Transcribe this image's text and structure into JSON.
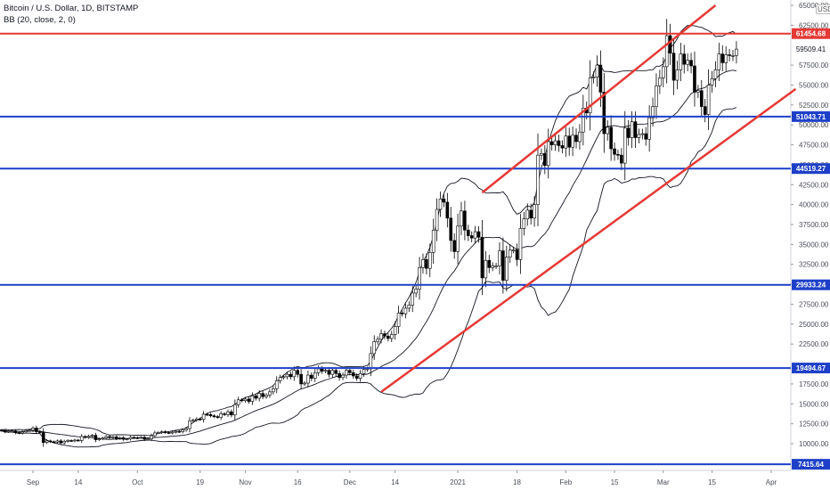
{
  "header": {
    "title": "Bitcoin / U.S. Dollar, 1D, BITSTAMP",
    "indicator": "BB (20, close, 2, 0)",
    "currency": "USD"
  },
  "chart_data": {
    "type": "candlestick",
    "title": "Bitcoin / U.S. Dollar, 1D, BITSTAMP",
    "xlabel": "",
    "ylabel": "",
    "ylim": [
      6500,
      65000
    ],
    "x_range": [
      "2020-08-22",
      "2021-04-08"
    ],
    "x_ticks": [
      {
        "date": "2020-09-01",
        "label": "Sep"
      },
      {
        "date": "2020-09-14",
        "label": "14"
      },
      {
        "date": "2020-10-01",
        "label": "Oct"
      },
      {
        "date": "2020-10-19",
        "label": "19"
      },
      {
        "date": "2020-11-01",
        "label": "Nov"
      },
      {
        "date": "2020-11-16",
        "label": "16"
      },
      {
        "date": "2020-12-01",
        "label": "Dec"
      },
      {
        "date": "2020-12-14",
        "label": "14"
      },
      {
        "date": "2021-01-01",
        "label": "2021"
      },
      {
        "date": "2021-01-18",
        "label": "18"
      },
      {
        "date": "2021-02-01",
        "label": "Feb"
      },
      {
        "date": "2021-02-15",
        "label": "15"
      },
      {
        "date": "2021-03-01",
        "label": "Mar"
      },
      {
        "date": "2021-03-15",
        "label": "15"
      },
      {
        "date": "2021-04-01",
        "label": "Apr"
      }
    ],
    "y_ticks": [
      {
        "value": 65000,
        "label": "65000.00"
      },
      {
        "value": 62500,
        "label": "62500.00"
      },
      {
        "value": 57500,
        "label": "57500.00"
      },
      {
        "value": 55000,
        "label": "55000.00"
      },
      {
        "value": 52500,
        "label": "52500.00"
      },
      {
        "value": 50000,
        "label": "50000.00"
      },
      {
        "value": 47500,
        "label": "47500.00"
      },
      {
        "value": 45000,
        "label": "45000.00"
      },
      {
        "value": 42500,
        "label": "42500.00"
      },
      {
        "value": 40000,
        "label": "40000.00"
      },
      {
        "value": 37500,
        "label": "37500.00"
      },
      {
        "value": 35000,
        "label": "35000.00"
      },
      {
        "value": 32500,
        "label": "32500.00"
      },
      {
        "value": 30000,
        "label": "30000.00"
      },
      {
        "value": 27500,
        "label": "27500.00"
      },
      {
        "value": 25000,
        "label": "25000.00"
      },
      {
        "value": 22500,
        "label": "22500.00"
      },
      {
        "value": 17500,
        "label": "17500.00"
      },
      {
        "value": 15000,
        "label": "15000.00"
      },
      {
        "value": 12500,
        "label": "12500.00"
      },
      {
        "value": 10000,
        "label": "10000.00"
      }
    ],
    "current_price": {
      "value": 59509.41,
      "label": "59509.41"
    },
    "horizontal_levels": [
      {
        "value": 61454.68,
        "label": "61454.68",
        "color": "#e53935"
      },
      {
        "value": 51043.71,
        "label": "51043.71",
        "color": "#1e40c8"
      },
      {
        "value": 44519.27,
        "label": "44519.27",
        "color": "#1e40c8"
      },
      {
        "value": 29933.24,
        "label": "29933.24",
        "color": "#1e40c8"
      },
      {
        "value": 19494.67,
        "label": "19494.67",
        "color": "#1e40c8"
      },
      {
        "value": 7415.64,
        "label": "7415.64",
        "color": "#1e40c8"
      }
    ],
    "channel_lines": [
      {
        "from": {
          "date": "2021-01-08",
          "value": 41500
        },
        "to": {
          "date": "2021-03-16",
          "value": 65000
        },
        "color": "#e53935"
      },
      {
        "from": {
          "date": "2020-12-10",
          "value": 16500
        },
        "to": {
          "date": "2021-04-08",
          "value": 54500
        },
        "color": "#e53935"
      }
    ],
    "series": [
      {
        "name": "Bitcoin / U.S. Dollar",
        "type": "candlestick",
        "daily_closes": [
          11700,
          11650,
          11500,
          11550,
          11600,
          11400,
          11350,
          11500,
          11650,
          11700,
          11950,
          11500,
          11400,
          10150,
          10350,
          10250,
          10200,
          10350,
          10100,
          10300,
          10400,
          10350,
          10450,
          10400,
          10900,
          10800,
          10950,
          11050,
          10500,
          10600,
          10700,
          10900,
          10750,
          10850,
          10650,
          10750,
          10550,
          10600,
          10800,
          10750,
          10700,
          10800,
          10550,
          10600,
          11000,
          11350,
          11400,
          11500,
          11400,
          11350,
          11450,
          11550,
          11500,
          11700,
          11900,
          12850,
          12950,
          13100,
          13050,
          13700,
          13650,
          13500,
          13400,
          13300,
          13750,
          13650,
          14000,
          13600,
          14900,
          15500,
          15400,
          15600,
          15300,
          16000,
          15700,
          16300,
          15900,
          16100,
          16500,
          16900,
          17900,
          18300,
          18400,
          18700,
          18400,
          19200,
          18700,
          17500,
          17600,
          18600,
          18200,
          18900,
          19400,
          19100,
          19200,
          18700,
          19200,
          18800,
          18300,
          18600,
          19200,
          18900,
          18500,
          18200,
          18800,
          19300,
          19400,
          21300,
          22800,
          23100,
          23800,
          23500,
          23200,
          23700,
          24700,
          26400,
          26300,
          27000,
          27400,
          28900,
          29400,
          32100,
          33100,
          32000,
          34000,
          36800,
          39400,
          40700,
          40300,
          38300,
          35500,
          34100,
          37300,
          39200,
          36800,
          36100,
          35800,
          36600,
          35900,
          30800,
          33000,
          32100,
          32300,
          32300,
          34200,
          30500,
          33400,
          34300,
          34300,
          33100,
          37000,
          38200,
          39300,
          38300,
          40000,
          46200,
          46400,
          44900,
          47900,
          47500,
          48000,
          47400,
          47100,
          48600,
          47200,
          48700,
          47900,
          49100,
          52100,
          51500,
          55900,
          56000,
          57500,
          54100,
          48900,
          49700,
          47000,
          46300,
          46200,
          45200,
          49600,
          48400,
          50400,
          48400,
          48800,
          48900,
          48200,
          50900,
          52300,
          54900,
          55900,
          57300,
          61200,
          59000,
          55600,
          56900,
          58900,
          57600,
          58100,
          57400,
          54100,
          54300,
          52300,
          51300,
          55000,
          55800,
          56900,
          58900,
          57800,
          58800,
          58700,
          58700,
          59509
        ]
      },
      {
        "name": "BB (20, close, 2, 0)",
        "type": "bands",
        "style": "Bollinger Bands: basis and upper/lower bands"
      }
    ],
    "grid": false,
    "legend": "top-left"
  }
}
